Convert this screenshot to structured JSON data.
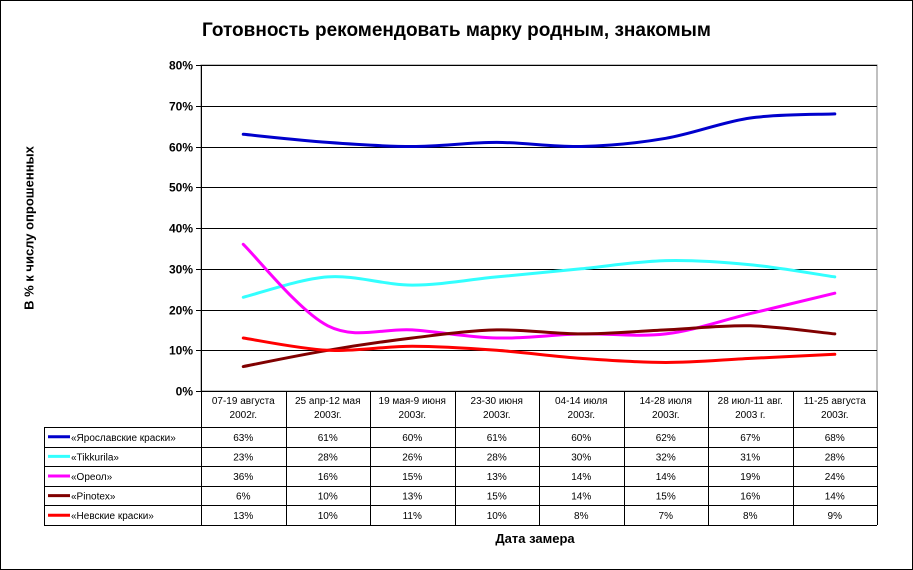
{
  "chart_data": {
    "type": "line",
    "title": "Готовность рекомендовать марку родным, знакомым",
    "xlabel": "Дата замера",
    "ylabel": "В % к числу опрошенных",
    "ylim": [
      0,
      80
    ],
    "yticks": [
      "0%",
      "10%",
      "20%",
      "30%",
      "40%",
      "50%",
      "60%",
      "70%",
      "80%"
    ],
    "grid": true,
    "legend": "data-table-below",
    "categories": [
      [
        "07-19 августа",
        "2002г."
      ],
      [
        "25 апр-12 мая",
        "2003г."
      ],
      [
        "19 мая-9 июня",
        "2003г."
      ],
      [
        "23-30 июня",
        "2003г."
      ],
      [
        "04-14 июля",
        "2003г."
      ],
      [
        "14-28 июля",
        "2003г."
      ],
      [
        "28 июл-11 авг.",
        "2003 г."
      ],
      [
        "11-25 августа",
        "2003г."
      ]
    ],
    "series": [
      {
        "name": "«Ярославские краски»",
        "color": "#0000CC",
        "values": [
          63,
          61,
          60,
          61,
          60,
          62,
          67,
          68
        ],
        "labels": [
          "63%",
          "61%",
          "60%",
          "61%",
          "60%",
          "62%",
          "67%",
          "68%"
        ]
      },
      {
        "name": "«Tikkurila»",
        "color": "#33FFFF",
        "values": [
          23,
          28,
          26,
          28,
          30,
          32,
          31,
          28
        ],
        "labels": [
          "23%",
          "28%",
          "26%",
          "28%",
          "30%",
          "32%",
          "31%",
          "28%"
        ]
      },
      {
        "name": "«Ореол»",
        "color": "#FF00FF",
        "values": [
          36,
          16,
          15,
          13,
          14,
          14,
          19,
          24
        ],
        "labels": [
          "36%",
          "16%",
          "15%",
          "13%",
          "14%",
          "14%",
          "19%",
          "24%"
        ]
      },
      {
        "name": "«Pinotex»",
        "color": "#800000",
        "values": [
          6,
          10,
          13,
          15,
          14,
          15,
          16,
          14
        ],
        "labels": [
          "6%",
          "10%",
          "13%",
          "15%",
          "14%",
          "15%",
          "16%",
          "14%"
        ]
      },
      {
        "name": "«Невские краски»",
        "color": "#FF0000",
        "values": [
          13,
          10,
          11,
          10,
          8,
          7,
          8,
          9
        ],
        "labels": [
          "13%",
          "10%",
          "11%",
          "10%",
          "8%",
          "7%",
          "8%",
          "9%"
        ]
      }
    ]
  }
}
